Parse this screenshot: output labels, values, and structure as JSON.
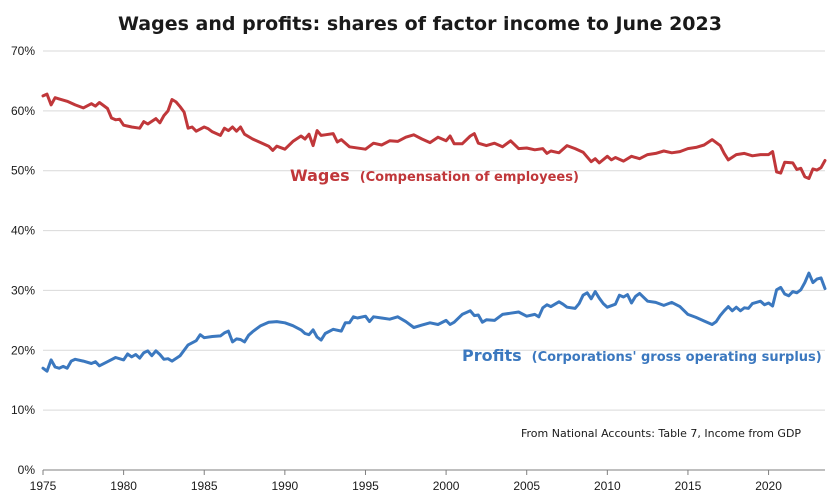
{
  "chart_data": {
    "type": "line",
    "title": "Wages and profits: shares of factor income to June 2023",
    "note": "From National Accounts: Table 7, Income from GDP",
    "xlim": [
      1975,
      2023.5
    ],
    "ylim": [
      0,
      70
    ],
    "x_ticks": [
      1975,
      1980,
      1985,
      1990,
      1995,
      2000,
      2005,
      2010,
      2015,
      2020
    ],
    "y_ticks": [
      0,
      10,
      20,
      30,
      40,
      50,
      60,
      70
    ],
    "y_tick_labels": [
      "0%",
      "10%",
      "20%",
      "30%",
      "40%",
      "50%",
      "60%",
      "70%"
    ],
    "grid": true,
    "series": [
      {
        "name": "Wages",
        "sub_label": "(Compensation of employees)",
        "color": "#c0373a",
        "points": [
          [
            1975.0,
            62.5
          ],
          [
            1975.25,
            62.8
          ],
          [
            1975.5,
            61.0
          ],
          [
            1975.75,
            62.2
          ],
          [
            1976.0,
            62.0
          ],
          [
            1976.5,
            61.6
          ],
          [
            1977.0,
            61.0
          ],
          [
            1977.5,
            60.5
          ],
          [
            1978.0,
            61.2
          ],
          [
            1978.25,
            60.8
          ],
          [
            1978.5,
            61.4
          ],
          [
            1978.75,
            60.9
          ],
          [
            1979.0,
            60.4
          ],
          [
            1979.25,
            58.8
          ],
          [
            1979.5,
            58.5
          ],
          [
            1979.75,
            58.6
          ],
          [
            1980.0,
            57.6
          ],
          [
            1980.5,
            57.3
          ],
          [
            1981.0,
            57.1
          ],
          [
            1981.25,
            58.2
          ],
          [
            1981.5,
            57.8
          ],
          [
            1982.0,
            58.7
          ],
          [
            1982.25,
            58.0
          ],
          [
            1982.5,
            59.2
          ],
          [
            1982.75,
            60.0
          ],
          [
            1983.0,
            61.9
          ],
          [
            1983.25,
            61.5
          ],
          [
            1983.5,
            60.7
          ],
          [
            1983.75,
            59.8
          ],
          [
            1984.0,
            57.1
          ],
          [
            1984.25,
            57.3
          ],
          [
            1984.5,
            56.6
          ],
          [
            1985.0,
            57.3
          ],
          [
            1985.25,
            57.0
          ],
          [
            1985.5,
            56.5
          ],
          [
            1986.0,
            55.9
          ],
          [
            1986.25,
            57.1
          ],
          [
            1986.5,
            56.7
          ],
          [
            1986.75,
            57.3
          ],
          [
            1987.0,
            56.6
          ],
          [
            1987.25,
            57.3
          ],
          [
            1987.5,
            56.1
          ],
          [
            1988.0,
            55.3
          ],
          [
            1988.5,
            54.7
          ],
          [
            1989.0,
            54.1
          ],
          [
            1989.25,
            53.4
          ],
          [
            1989.5,
            54.1
          ],
          [
            1990.0,
            53.6
          ],
          [
            1990.5,
            54.9
          ],
          [
            1991.0,
            55.8
          ],
          [
            1991.25,
            55.3
          ],
          [
            1991.5,
            56.1
          ],
          [
            1991.75,
            54.2
          ],
          [
            1992.0,
            56.7
          ],
          [
            1992.25,
            55.9
          ],
          [
            1992.5,
            56.0
          ],
          [
            1993.0,
            56.2
          ],
          [
            1993.25,
            54.8
          ],
          [
            1993.5,
            55.2
          ],
          [
            1994.0,
            54.0
          ],
          [
            1995.0,
            53.6
          ],
          [
            1995.5,
            54.6
          ],
          [
            1996.0,
            54.3
          ],
          [
            1996.5,
            55.0
          ],
          [
            1997.0,
            54.9
          ],
          [
            1997.5,
            55.6
          ],
          [
            1998.0,
            56.0
          ],
          [
            1998.5,
            55.3
          ],
          [
            1999.0,
            54.7
          ],
          [
            1999.5,
            55.6
          ],
          [
            2000.0,
            55.0
          ],
          [
            2000.25,
            55.8
          ],
          [
            2000.5,
            54.5
          ],
          [
            2001.0,
            54.5
          ],
          [
            2001.5,
            55.8
          ],
          [
            2001.75,
            56.2
          ],
          [
            2002.0,
            54.6
          ],
          [
            2002.5,
            54.2
          ],
          [
            2003.0,
            54.6
          ],
          [
            2003.5,
            54.0
          ],
          [
            2004.0,
            55.0
          ],
          [
            2004.5,
            53.7
          ],
          [
            2005.0,
            53.8
          ],
          [
            2005.5,
            53.5
          ],
          [
            2006.0,
            53.7
          ],
          [
            2006.25,
            52.9
          ],
          [
            2006.5,
            53.3
          ],
          [
            2007.0,
            53.0
          ],
          [
            2007.5,
            54.2
          ],
          [
            2008.0,
            53.7
          ],
          [
            2008.5,
            53.1
          ],
          [
            2009.0,
            51.5
          ],
          [
            2009.25,
            52.0
          ],
          [
            2009.5,
            51.3
          ],
          [
            2010.0,
            52.4
          ],
          [
            2010.25,
            51.8
          ],
          [
            2010.5,
            52.2
          ],
          [
            2011.0,
            51.6
          ],
          [
            2011.5,
            52.4
          ],
          [
            2012.0,
            52.0
          ],
          [
            2012.5,
            52.7
          ],
          [
            2013.0,
            52.9
          ],
          [
            2013.5,
            53.3
          ],
          [
            2014.0,
            53.0
          ],
          [
            2014.5,
            53.2
          ],
          [
            2015.0,
            53.7
          ],
          [
            2015.5,
            53.9
          ],
          [
            2016.0,
            54.3
          ],
          [
            2016.5,
            55.2
          ],
          [
            2017.0,
            54.2
          ],
          [
            2017.25,
            52.9
          ],
          [
            2017.5,
            51.8
          ],
          [
            2018.0,
            52.7
          ],
          [
            2018.5,
            52.9
          ],
          [
            2019.0,
            52.5
          ],
          [
            2019.5,
            52.7
          ],
          [
            2020.0,
            52.7
          ],
          [
            2020.25,
            53.2
          ],
          [
            2020.5,
            49.8
          ],
          [
            2020.75,
            49.6
          ],
          [
            2021.0,
            51.4
          ],
          [
            2021.5,
            51.3
          ],
          [
            2021.75,
            50.2
          ],
          [
            2022.0,
            50.4
          ],
          [
            2022.25,
            49.0
          ],
          [
            2022.5,
            48.7
          ],
          [
            2022.75,
            50.3
          ],
          [
            2023.0,
            50.1
          ],
          [
            2023.25,
            50.5
          ],
          [
            2023.5,
            51.7
          ]
        ]
      },
      {
        "name": "Profits",
        "sub_label": "(Corporations' gross operating surplus)",
        "color": "#3b78bf",
        "points": [
          [
            1975.0,
            17.0
          ],
          [
            1975.25,
            16.5
          ],
          [
            1975.5,
            18.4
          ],
          [
            1975.75,
            17.2
          ],
          [
            1976.0,
            17.0
          ],
          [
            1976.25,
            17.3
          ],
          [
            1976.5,
            17.0
          ],
          [
            1976.75,
            18.2
          ],
          [
            1977.0,
            18.5
          ],
          [
            1977.5,
            18.2
          ],
          [
            1978.0,
            17.8
          ],
          [
            1978.25,
            18.1
          ],
          [
            1978.5,
            17.4
          ],
          [
            1979.0,
            18.1
          ],
          [
            1979.5,
            18.8
          ],
          [
            1980.0,
            18.4
          ],
          [
            1980.25,
            19.4
          ],
          [
            1980.5,
            18.9
          ],
          [
            1980.75,
            19.3
          ],
          [
            1981.0,
            18.7
          ],
          [
            1981.25,
            19.6
          ],
          [
            1981.5,
            19.9
          ],
          [
            1981.75,
            19.1
          ],
          [
            1982.0,
            19.9
          ],
          [
            1982.25,
            19.3
          ],
          [
            1982.5,
            18.5
          ],
          [
            1982.75,
            18.6
          ],
          [
            1983.0,
            18.2
          ],
          [
            1983.5,
            19.1
          ],
          [
            1984.0,
            20.9
          ],
          [
            1984.5,
            21.6
          ],
          [
            1984.75,
            22.6
          ],
          [
            1985.0,
            22.1
          ],
          [
            1985.5,
            22.3
          ],
          [
            1986.0,
            22.4
          ],
          [
            1986.25,
            22.9
          ],
          [
            1986.5,
            23.2
          ],
          [
            1986.75,
            21.4
          ],
          [
            1987.0,
            21.9
          ],
          [
            1987.25,
            21.8
          ],
          [
            1987.5,
            21.4
          ],
          [
            1987.75,
            22.5
          ],
          [
            1988.0,
            23.1
          ],
          [
            1988.5,
            24.1
          ],
          [
            1989.0,
            24.7
          ],
          [
            1989.5,
            24.8
          ],
          [
            1990.0,
            24.6
          ],
          [
            1990.5,
            24.1
          ],
          [
            1991.0,
            23.4
          ],
          [
            1991.25,
            22.8
          ],
          [
            1991.5,
            22.6
          ],
          [
            1991.75,
            23.4
          ],
          [
            1992.0,
            22.2
          ],
          [
            1992.25,
            21.7
          ],
          [
            1992.5,
            22.8
          ],
          [
            1993.0,
            23.5
          ],
          [
            1993.5,
            23.2
          ],
          [
            1993.75,
            24.6
          ],
          [
            1994.0,
            24.6
          ],
          [
            1994.25,
            25.6
          ],
          [
            1994.5,
            25.4
          ],
          [
            1995.0,
            25.7
          ],
          [
            1995.25,
            24.8
          ],
          [
            1995.5,
            25.6
          ],
          [
            1996.0,
            25.4
          ],
          [
            1996.5,
            25.2
          ],
          [
            1997.0,
            25.6
          ],
          [
            1997.5,
            24.8
          ],
          [
            1998.0,
            23.8
          ],
          [
            1998.5,
            24.2
          ],
          [
            1999.0,
            24.6
          ],
          [
            1999.5,
            24.3
          ],
          [
            2000.0,
            25.0
          ],
          [
            2000.25,
            24.3
          ],
          [
            2000.5,
            24.7
          ],
          [
            2001.0,
            26.0
          ],
          [
            2001.5,
            26.6
          ],
          [
            2001.75,
            25.8
          ],
          [
            2002.0,
            25.9
          ],
          [
            2002.25,
            24.7
          ],
          [
            2002.5,
            25.1
          ],
          [
            2003.0,
            25.0
          ],
          [
            2003.5,
            26.0
          ],
          [
            2004.0,
            26.2
          ],
          [
            2004.5,
            26.4
          ],
          [
            2005.0,
            25.7
          ],
          [
            2005.5,
            26.0
          ],
          [
            2005.75,
            25.6
          ],
          [
            2006.0,
            27.1
          ],
          [
            2006.25,
            27.6
          ],
          [
            2006.5,
            27.3
          ],
          [
            2007.0,
            28.1
          ],
          [
            2007.25,
            27.7
          ],
          [
            2007.5,
            27.2
          ],
          [
            2008.0,
            27.0
          ],
          [
            2008.25,
            27.8
          ],
          [
            2008.5,
            29.2
          ],
          [
            2008.75,
            29.6
          ],
          [
            2009.0,
            28.6
          ],
          [
            2009.25,
            29.8
          ],
          [
            2009.5,
            28.7
          ],
          [
            2009.75,
            27.8
          ],
          [
            2010.0,
            27.2
          ],
          [
            2010.5,
            27.7
          ],
          [
            2010.75,
            29.2
          ],
          [
            2011.0,
            28.9
          ],
          [
            2011.25,
            29.3
          ],
          [
            2011.5,
            27.9
          ],
          [
            2011.75,
            29.0
          ],
          [
            2012.0,
            29.5
          ],
          [
            2012.5,
            28.2
          ],
          [
            2013.0,
            28.0
          ],
          [
            2013.5,
            27.5
          ],
          [
            2014.0,
            28.0
          ],
          [
            2014.5,
            27.3
          ],
          [
            2015.0,
            26.0
          ],
          [
            2015.5,
            25.5
          ],
          [
            2016.0,
            24.9
          ],
          [
            2016.5,
            24.3
          ],
          [
            2016.75,
            24.8
          ],
          [
            2017.0,
            25.8
          ],
          [
            2017.25,
            26.6
          ],
          [
            2017.5,
            27.3
          ],
          [
            2017.75,
            26.6
          ],
          [
            2018.0,
            27.2
          ],
          [
            2018.25,
            26.6
          ],
          [
            2018.5,
            27.1
          ],
          [
            2018.75,
            27.0
          ],
          [
            2019.0,
            27.8
          ],
          [
            2019.5,
            28.2
          ],
          [
            2019.75,
            27.6
          ],
          [
            2020.0,
            27.9
          ],
          [
            2020.25,
            27.4
          ],
          [
            2020.5,
            30.1
          ],
          [
            2020.75,
            30.5
          ],
          [
            2021.0,
            29.4
          ],
          [
            2021.25,
            29.1
          ],
          [
            2021.5,
            29.8
          ],
          [
            2021.75,
            29.6
          ],
          [
            2022.0,
            30.1
          ],
          [
            2022.25,
            31.3
          ],
          [
            2022.5,
            32.9
          ],
          [
            2022.75,
            31.3
          ],
          [
            2023.0,
            31.9
          ],
          [
            2023.25,
            32.1
          ],
          [
            2023.5,
            30.3
          ]
        ]
      }
    ]
  }
}
